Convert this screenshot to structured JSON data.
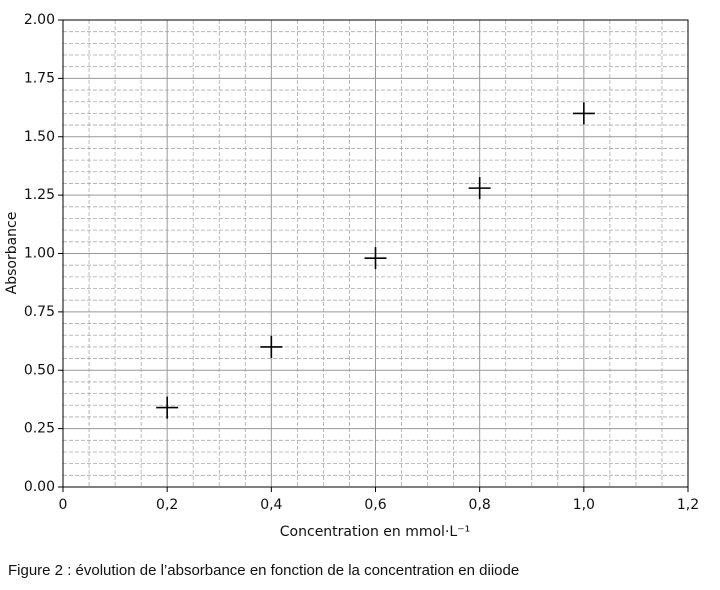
{
  "chart_data": {
    "type": "scatter",
    "x_label": "Concentration en mmol·L⁻¹",
    "y_label": "Absorbance",
    "caption": "Figure 2 : évolution de l’absorbance en fonction de la concentration en diiode",
    "x": [
      0.2,
      0.4,
      0.6,
      0.8,
      1.0
    ],
    "values": [
      0.34,
      0.6,
      0.98,
      1.28,
      1.6
    ],
    "color": "#000000",
    "marker": "+",
    "xlim": [
      0,
      1.2
    ],
    "ylim": [
      0,
      2.0
    ],
    "xticks": [
      0,
      {
        "value": 0.2,
        "label": "0,2"
      },
      {
        "value": 0.4,
        "label": "0,4"
      },
      {
        "value": 0.6,
        "label": "0,6"
      },
      {
        "value": 0.8,
        "label": "0,8"
      },
      {
        "value": 1.0,
        "label": "1,0"
      },
      {
        "value": 1.2,
        "label": "1,2"
      }
    ],
    "yticks": [
      {
        "value": 0,
        "label": "0.00"
      },
      {
        "value": 0.25,
        "label": "0.25"
      },
      {
        "value": 0.5,
        "label": "0.50"
      },
      {
        "value": 0.75,
        "label": "0.75"
      },
      {
        "value": 1.0,
        "label": "1.00"
      },
      {
        "value": 1.25,
        "label": "1.25"
      },
      {
        "value": 1.5,
        "label": "1.50"
      },
      {
        "value": 1.75,
        "label": "1.75"
      },
      {
        "value": 2.0,
        "label": "2.00"
      }
    ],
    "xminorticks": [
      0.05,
      0.1,
      0.15,
      0.25,
      0.3,
      0.35,
      0.45,
      0.5,
      0.55,
      0.65,
      0.7,
      0.75,
      0.85,
      0.9,
      0.95,
      1.05,
      1.1,
      1.15
    ],
    "yminorticks": [
      0.05,
      0.1,
      0.15,
      0.2,
      0.3,
      0.35,
      0.4,
      0.45,
      0.55,
      0.6,
      0.65,
      0.7,
      0.8,
      0.85,
      0.9,
      0.95,
      1.05,
      1.1,
      1.15,
      1.2,
      1.3,
      1.35,
      1.4,
      1.45,
      1.55,
      1.6,
      1.65,
      1.7,
      1.8,
      1.85,
      1.9,
      1.95
    ],
    "grid": true,
    "minor_grid": true
  }
}
